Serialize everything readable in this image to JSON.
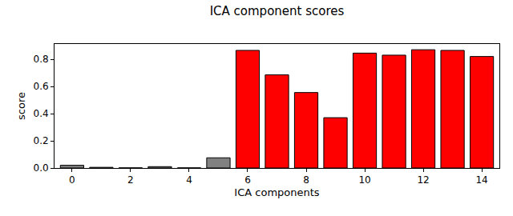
{
  "chart_data": {
    "type": "bar",
    "title": "ICA component scores",
    "x_label": "ICA components",
    "y_label": "score",
    "x": [
      0,
      1,
      2,
      3,
      4,
      5,
      6,
      7,
      8,
      9,
      10,
      11,
      12,
      13,
      14
    ],
    "values": [
      0.02,
      0.005,
      0.001,
      0.01,
      0.001,
      0.075,
      0.865,
      0.685,
      0.555,
      0.37,
      0.845,
      0.83,
      0.87,
      0.865,
      0.82
    ],
    "colors": [
      "#808080",
      "#808080",
      "#808080",
      "#808080",
      "#808080",
      "#808080",
      "#ff0000",
      "#ff0000",
      "#ff0000",
      "#ff0000",
      "#ff0000",
      "#ff0000",
      "#ff0000",
      "#ff0000",
      "#ff0000"
    ],
    "xlim": [
      -0.6,
      14.6
    ],
    "xticks": [
      0,
      2,
      4,
      6,
      8,
      10,
      12,
      14
    ],
    "ylim": [
      0,
      0.912
    ],
    "yticks": [
      {
        "value": 0,
        "label": "0.0"
      },
      0.2,
      0.4,
      0.6,
      0.8
    ],
    "grid": false
  }
}
